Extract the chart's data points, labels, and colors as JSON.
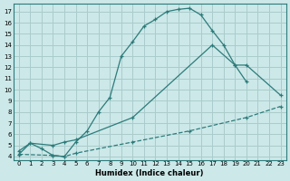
{
  "xlabel": "Humidex (Indice chaleur)",
  "background_color": "#cce8e8",
  "grid_color": "#aacccc",
  "line_color": "#2d7b7b",
  "xlim_min": -0.5,
  "xlim_max": 23.5,
  "ylim_min": 3.7,
  "ylim_max": 17.7,
  "xticks": [
    0,
    1,
    2,
    3,
    4,
    5,
    6,
    7,
    8,
    9,
    10,
    11,
    12,
    13,
    14,
    15,
    16,
    17,
    18,
    19,
    20,
    21,
    22,
    23
  ],
  "yticks": [
    4,
    5,
    6,
    7,
    8,
    9,
    10,
    11,
    12,
    13,
    14,
    15,
    16,
    17
  ],
  "curve_top_x": [
    0,
    1,
    2,
    3,
    4,
    5,
    6,
    7,
    8,
    9,
    10,
    11,
    12,
    13,
    14,
    15,
    16,
    17,
    18,
    19,
    20
  ],
  "curve_top_y": [
    4.2,
    5.2,
    4.7,
    4.1,
    4.0,
    5.3,
    6.3,
    8.0,
    9.3,
    13.0,
    14.3,
    15.7,
    16.3,
    17.0,
    17.2,
    17.3,
    16.7,
    15.3,
    14.0,
    12.2,
    10.7
  ],
  "curve_mid_x": [
    0,
    1,
    3,
    4,
    5,
    10,
    17,
    19,
    20,
    23
  ],
  "curve_mid_y": [
    4.5,
    5.2,
    5.0,
    5.3,
    5.5,
    7.5,
    14.0,
    12.2,
    12.2,
    9.5
  ],
  "curve_low_x": [
    0,
    3,
    4,
    5,
    10,
    15,
    20,
    23
  ],
  "curve_low_y": [
    4.2,
    4.1,
    4.0,
    4.3,
    5.3,
    6.3,
    7.5,
    8.5
  ],
  "top_linestyle": "-",
  "mid_linestyle": "-",
  "low_linestyle": "--"
}
